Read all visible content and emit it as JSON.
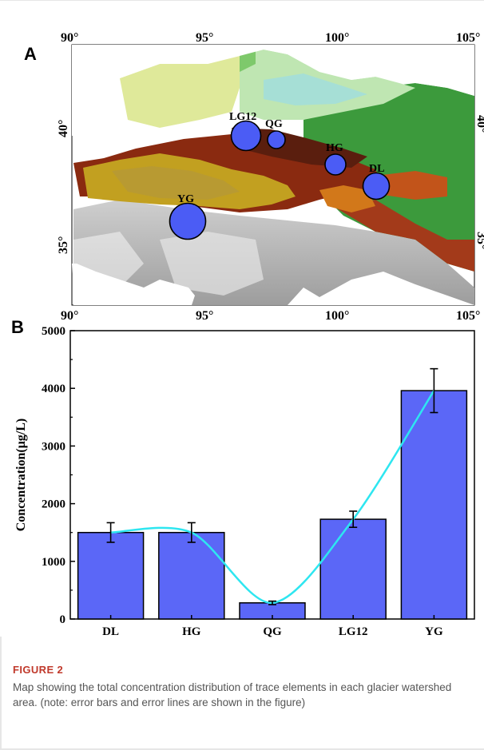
{
  "panels": {
    "a_letter": "A",
    "b_letter": "B"
  },
  "map": {
    "lon_ticks": [
      "90°",
      "95°",
      "100°",
      "105°"
    ],
    "lat_ticks": [
      "40°",
      "35°"
    ],
    "lat_ticks_right": [
      "40°",
      "35°"
    ],
    "sites": [
      {
        "label": "LG12",
        "size": "large"
      },
      {
        "label": "QG",
        "size": "small"
      },
      {
        "label": "HG",
        "size": "small"
      },
      {
        "label": "DL",
        "size": "medium"
      },
      {
        "label": "YG",
        "size": "large"
      }
    ],
    "marker_color": "#4b5cf5"
  },
  "chart_data": {
    "type": "bar",
    "categories": [
      "DL",
      "HG",
      "QG",
      "LG12",
      "YG"
    ],
    "values": [
      1500,
      1500,
      280,
      1730,
      3960
    ],
    "errors": [
      170,
      170,
      30,
      140,
      380
    ],
    "ylabel": "Concentration(μg/L)",
    "xlabel": "",
    "ylim": [
      0,
      5000
    ],
    "yticks": [
      "0",
      "1000",
      "2000",
      "3000",
      "4000",
      "5000"
    ],
    "bar_color": "#5b67f7",
    "curve_color": "#2ee6f0",
    "grid": false
  },
  "caption": {
    "label": "FIGURE 2",
    "text": "Map showing the total concentration distribution of trace elements in each glacier watershed area. (note: error bars and error lines are shown in the figure)"
  }
}
